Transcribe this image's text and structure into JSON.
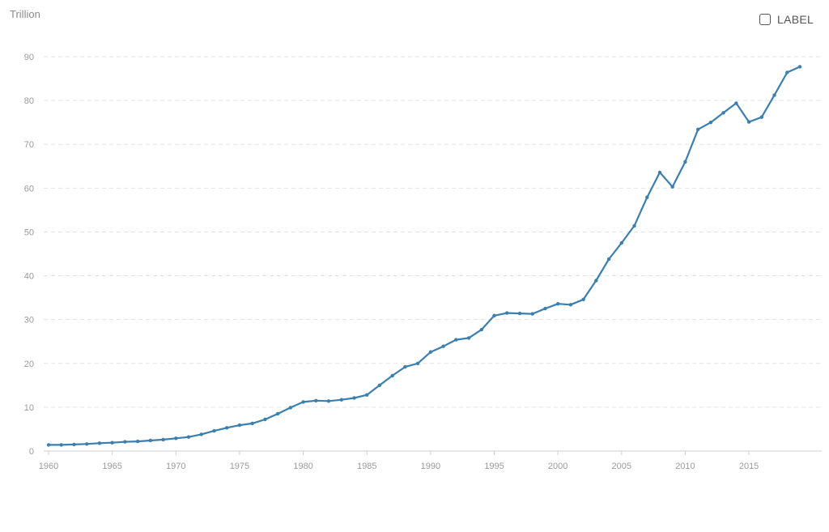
{
  "chart_data": {
    "type": "line",
    "ylabel": "Trillion",
    "ylim": [
      0,
      90
    ],
    "yticks": [
      0,
      10,
      20,
      30,
      40,
      50,
      60,
      70,
      80,
      90
    ],
    "xlim": [
      1960,
      2019
    ],
    "xticks": [
      1960,
      1965,
      1970,
      1975,
      1980,
      1985,
      1990,
      1995,
      2000,
      2005,
      2010,
      2015
    ],
    "grid": true,
    "series": [
      {
        "color": "#3a7fad",
        "x": [
          1960,
          1961,
          1962,
          1963,
          1964,
          1965,
          1966,
          1967,
          1968,
          1969,
          1970,
          1971,
          1972,
          1973,
          1974,
          1975,
          1976,
          1977,
          1978,
          1979,
          1980,
          1981,
          1982,
          1983,
          1984,
          1985,
          1986,
          1987,
          1988,
          1989,
          1990,
          1991,
          1992,
          1993,
          1994,
          1995,
          1996,
          1997,
          1998,
          1999,
          2000,
          2001,
          2002,
          2003,
          2004,
          2005,
          2006,
          2007,
          2008,
          2009,
          2010,
          2011,
          2012,
          2013,
          2014,
          2015,
          2016,
          2017,
          2018,
          2019
        ],
        "values": [
          1.4,
          1.4,
          1.5,
          1.6,
          1.8,
          1.9,
          2.1,
          2.2,
          2.4,
          2.6,
          2.9,
          3.2,
          3.8,
          4.6,
          5.3,
          5.9,
          6.3,
          7.2,
          8.5,
          9.9,
          11.2,
          11.5,
          11.4,
          11.7,
          12.1,
          12.8,
          15.0,
          17.2,
          19.2,
          20.0,
          22.6,
          23.9,
          25.4,
          25.8,
          27.7,
          30.9,
          31.5,
          31.4,
          31.3,
          32.5,
          33.6,
          33.4,
          34.6,
          38.9,
          43.8,
          47.5,
          51.4,
          57.9,
          63.6,
          60.3,
          66.0,
          73.4,
          75.0,
          77.2,
          79.4,
          75.1,
          76.2,
          81.2,
          86.4,
          87.7
        ]
      }
    ]
  },
  "controls": {
    "label_toggle_text": "LABEL"
  }
}
